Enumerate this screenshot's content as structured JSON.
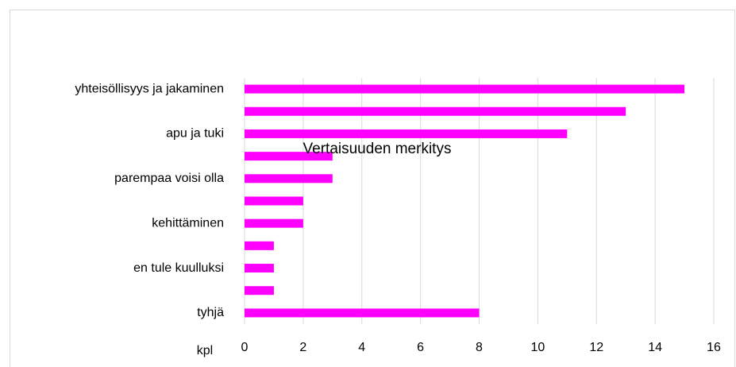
{
  "chart_data": {
    "type": "bar",
    "orientation": "horizontal",
    "title": "Vertaisuuden merkitys",
    "x_label": "kpl",
    "categories": [
      "yhteisöllisyys ja jakaminen",
      null,
      "apu ja tuki",
      null,
      "parempaa voisi olla",
      null,
      "kehittäminen",
      null,
      "en tule kuulluksi",
      null,
      "tyhjä"
    ],
    "values": [
      15,
      13,
      11,
      3,
      3,
      2,
      2,
      1,
      1,
      1,
      8
    ],
    "color": "#ff00ff",
    "xlim": [
      0,
      16
    ],
    "xticks": [
      0,
      2,
      4,
      6,
      8,
      10,
      12,
      14,
      16
    ],
    "grid": true
  }
}
